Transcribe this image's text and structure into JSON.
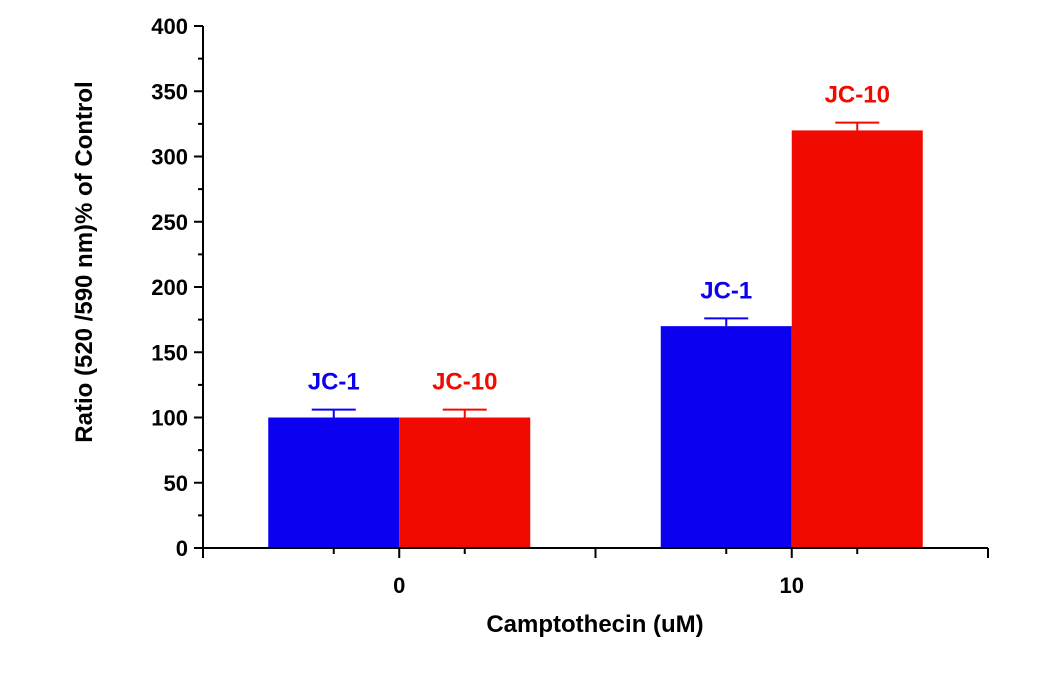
{
  "chart_data": {
    "type": "bar",
    "title": "",
    "xlabel": "Camptothecin (uM)",
    "ylabel": "Ratio (520 /590 nm)% of Control",
    "categories": [
      "0",
      "10"
    ],
    "ylim": [
      0,
      400
    ],
    "yticks": [
      0,
      50,
      100,
      150,
      200,
      250,
      300,
      350,
      400
    ],
    "series": [
      {
        "name": "JC-1",
        "color": "#0b00f0",
        "values": [
          100,
          170
        ],
        "errors": [
          6,
          6
        ],
        "labels": [
          "JC-1",
          "JC-1"
        ]
      },
      {
        "name": "JC-10",
        "color": "#f00a00",
        "values": [
          100,
          320
        ],
        "errors": [
          6,
          6
        ],
        "labels": [
          "JC-10",
          "JC-10"
        ]
      }
    ]
  }
}
